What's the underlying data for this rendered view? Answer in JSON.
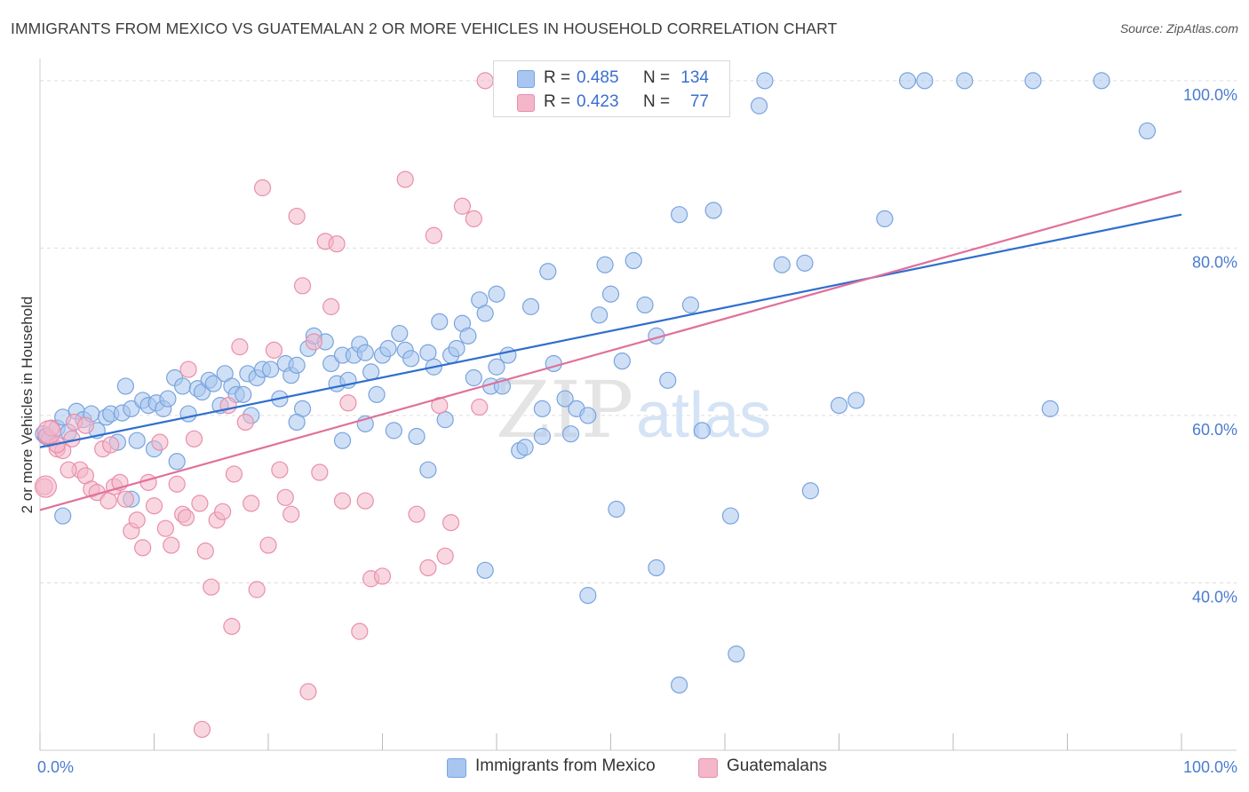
{
  "title": "IMMIGRANTS FROM MEXICO VS GUATEMALAN 2 OR MORE VEHICLES IN HOUSEHOLD CORRELATION CHART",
  "source": "Source: ZipAtlas.com",
  "watermark": {
    "zip": "ZIP",
    "atlas": "atlas"
  },
  "legend": {
    "series1": {
      "r_label": "R =",
      "r_value": "0.485",
      "n_label": "N =",
      "n_value": "134"
    },
    "series2": {
      "r_label": "R =",
      "r_value": "0.423",
      "n_label": "N =",
      "n_value": "77"
    }
  },
  "bottom_legend": {
    "series1": "Immigrants from Mexico",
    "series2": "Guatemalans"
  },
  "colors": {
    "blue_fill": "#a8c6ef",
    "blue_stroke": "#7aa3de",
    "blue_line": "#2f6ecf",
    "pink_fill": "#f4b6c9",
    "pink_stroke": "#e88fac",
    "pink_line": "#e0709a",
    "tick_text": "#4a7bd0",
    "grid": "#dddddd"
  },
  "chart_data": {
    "type": "scatter",
    "title": "IMMIGRANTS FROM MEXICO VS GUATEMALAN 2 OR MORE VEHICLES IN HOUSEHOLD CORRELATION CHART",
    "xlabel": "",
    "ylabel": "2 or more Vehicles in Household",
    "xlim": [
      0,
      100
    ],
    "ylim": [
      20,
      102
    ],
    "x_tick_labels": [
      "0.0%",
      "100.0%"
    ],
    "y_ticks": [
      40,
      60,
      80,
      100
    ],
    "y_tick_labels": [
      "40.0%",
      "60.0%",
      "80.0%",
      "100.0%"
    ],
    "grid": true,
    "legend_position": "top-center",
    "series": [
      {
        "name": "Immigrants from Mexico",
        "color": "#a8c6ef",
        "trend": [
          [
            0,
            56.2
          ],
          [
            100,
            84.0
          ]
        ],
        "points": [
          [
            0.3,
            57.8
          ],
          [
            0.5,
            57.5
          ],
          [
            0.8,
            57.2
          ],
          [
            1.5,
            58.5
          ],
          [
            2.0,
            59.8
          ],
          [
            2.5,
            58.0
          ],
          [
            3.2,
            60.5
          ],
          [
            3.8,
            59.5
          ],
          [
            4.5,
            60.2
          ],
          [
            5.0,
            58.2
          ],
          [
            5.8,
            59.8
          ],
          [
            6.2,
            60.2
          ],
          [
            6.8,
            56.8
          ],
          [
            7.2,
            60.3
          ],
          [
            7.5,
            63.5
          ],
          [
            8.0,
            60.8
          ],
          [
            8.5,
            57.0
          ],
          [
            9.0,
            61.8
          ],
          [
            9.5,
            61.2
          ],
          [
            10.2,
            61.5
          ],
          [
            10.8,
            60.8
          ],
          [
            11.2,
            62.0
          ],
          [
            11.8,
            64.5
          ],
          [
            12.5,
            63.5
          ],
          [
            13.0,
            60.2
          ],
          [
            13.8,
            63.2
          ],
          [
            14.2,
            62.8
          ],
          [
            14.8,
            64.2
          ],
          [
            15.2,
            63.8
          ],
          [
            15.8,
            61.2
          ],
          [
            16.2,
            65.0
          ],
          [
            16.8,
            63.5
          ],
          [
            17.2,
            62.5
          ],
          [
            17.8,
            62.5
          ],
          [
            18.2,
            65.0
          ],
          [
            19.0,
            64.5
          ],
          [
            19.5,
            65.5
          ],
          [
            20.2,
            65.5
          ],
          [
            21.0,
            62.0
          ],
          [
            21.5,
            66.2
          ],
          [
            22.0,
            64.8
          ],
          [
            22.5,
            66.0
          ],
          [
            23.0,
            60.8
          ],
          [
            23.5,
            68.0
          ],
          [
            24.0,
            69.5
          ],
          [
            25.0,
            68.8
          ],
          [
            25.5,
            66.2
          ],
          [
            26.0,
            63.8
          ],
          [
            26.5,
            67.2
          ],
          [
            27.0,
            64.2
          ],
          [
            27.5,
            67.2
          ],
          [
            28.0,
            68.5
          ],
          [
            28.5,
            67.5
          ],
          [
            29.0,
            65.2
          ],
          [
            29.5,
            62.5
          ],
          [
            30.0,
            67.2
          ],
          [
            30.5,
            68.0
          ],
          [
            31.0,
            58.2
          ],
          [
            31.5,
            69.8
          ],
          [
            32.0,
            67.8
          ],
          [
            32.5,
            66.8
          ],
          [
            33.0,
            57.5
          ],
          [
            34.0,
            67.5
          ],
          [
            34.5,
            65.8
          ],
          [
            35.0,
            71.2
          ],
          [
            35.5,
            59.5
          ],
          [
            36.0,
            67.2
          ],
          [
            36.5,
            68.0
          ],
          [
            37.0,
            71.0
          ],
          [
            37.5,
            69.5
          ],
          [
            38.0,
            64.5
          ],
          [
            38.5,
            73.8
          ],
          [
            39.0,
            72.2
          ],
          [
            39.5,
            63.5
          ],
          [
            40.0,
            65.8
          ],
          [
            40.5,
            63.5
          ],
          [
            41.0,
            67.2
          ],
          [
            42.0,
            55.8
          ],
          [
            42.5,
            56.2
          ],
          [
            43.0,
            73.0
          ],
          [
            44.0,
            60.8
          ],
          [
            44.5,
            77.2
          ],
          [
            45.0,
            66.2
          ],
          [
            46.0,
            62.0
          ],
          [
            46.5,
            57.8
          ],
          [
            47.0,
            60.8
          ],
          [
            48.0,
            60.0
          ],
          [
            49.0,
            72.0
          ],
          [
            49.5,
            78.0
          ],
          [
            50.0,
            74.5
          ],
          [
            51.0,
            66.5
          ],
          [
            52.0,
            78.5
          ],
          [
            53.0,
            73.2
          ],
          [
            54.0,
            69.5
          ],
          [
            55.0,
            64.2
          ],
          [
            56.0,
            84.0
          ],
          [
            57.0,
            73.2
          ],
          [
            58.0,
            58.2
          ],
          [
            59.0,
            84.5
          ],
          [
            60.5,
            48.0
          ],
          [
            61.0,
            31.5
          ],
          [
            63.0,
            97.0
          ],
          [
            65.0,
            78.0
          ],
          [
            67.0,
            78.2
          ],
          [
            67.5,
            51.0
          ],
          [
            70.0,
            61.2
          ],
          [
            71.5,
            61.8
          ],
          [
            74.0,
            83.5
          ],
          [
            76.0,
            100.0
          ],
          [
            77.5,
            100.0
          ],
          [
            81.0,
            100.0
          ],
          [
            87.0,
            100.0
          ],
          [
            93.0,
            100.0
          ],
          [
            97.0,
            94.0
          ],
          [
            63.5,
            100.0
          ],
          [
            58.0,
            100.0
          ],
          [
            55.0,
            100.0
          ],
          [
            88.5,
            60.8
          ],
          [
            48.0,
            38.5
          ],
          [
            56.0,
            27.8
          ],
          [
            54.0,
            41.8
          ],
          [
            50.5,
            48.8
          ],
          [
            39.0,
            41.5
          ],
          [
            22.5,
            59.2
          ],
          [
            28.5,
            59.0
          ],
          [
            34.0,
            53.5
          ],
          [
            12.0,
            54.5
          ],
          [
            2.0,
            48.0
          ],
          [
            8.0,
            50.0
          ],
          [
            10.0,
            56.0
          ],
          [
            18.5,
            60.0
          ],
          [
            40.0,
            74.5
          ],
          [
            44.0,
            57.5
          ],
          [
            26.5,
            57.0
          ]
        ]
      },
      {
        "name": "Guatemalans",
        "color": "#f4b6c9",
        "trend": [
          [
            0,
            48.7
          ],
          [
            100,
            86.8
          ]
        ],
        "points": [
          [
            0.4,
            51.5
          ],
          [
            0.6,
            57.5
          ],
          [
            1.0,
            58.5
          ],
          [
            1.5,
            56.0
          ],
          [
            2.0,
            55.8
          ],
          [
            2.8,
            57.2
          ],
          [
            3.0,
            59.2
          ],
          [
            3.5,
            53.5
          ],
          [
            4.0,
            52.8
          ],
          [
            4.5,
            51.2
          ],
          [
            5.0,
            50.8
          ],
          [
            5.5,
            56.0
          ],
          [
            6.0,
            49.8
          ],
          [
            6.5,
            51.5
          ],
          [
            7.0,
            52.0
          ],
          [
            7.5,
            50.0
          ],
          [
            8.0,
            46.2
          ],
          [
            8.5,
            47.5
          ],
          [
            9.0,
            44.2
          ],
          [
            9.5,
            52.0
          ],
          [
            10.0,
            49.2
          ],
          [
            10.5,
            56.8
          ],
          [
            11.0,
            46.5
          ],
          [
            11.5,
            44.5
          ],
          [
            12.0,
            51.8
          ],
          [
            12.5,
            48.2
          ],
          [
            13.0,
            65.5
          ],
          [
            13.5,
            57.2
          ],
          [
            14.0,
            49.5
          ],
          [
            14.5,
            43.8
          ],
          [
            15.0,
            39.5
          ],
          [
            15.5,
            47.5
          ],
          [
            16.0,
            48.5
          ],
          [
            16.5,
            61.2
          ],
          [
            17.0,
            53.0
          ],
          [
            17.5,
            68.2
          ],
          [
            18.0,
            59.2
          ],
          [
            18.5,
            49.5
          ],
          [
            19.0,
            39.2
          ],
          [
            19.5,
            87.2
          ],
          [
            20.0,
            44.5
          ],
          [
            20.5,
            67.8
          ],
          [
            21.0,
            53.5
          ],
          [
            21.5,
            50.2
          ],
          [
            22.0,
            48.2
          ],
          [
            22.5,
            83.8
          ],
          [
            23.0,
            75.5
          ],
          [
            23.5,
            27.0
          ],
          [
            24.0,
            68.8
          ],
          [
            24.5,
            53.2
          ],
          [
            25.0,
            80.8
          ],
          [
            25.5,
            73.0
          ],
          [
            26.0,
            80.5
          ],
          [
            26.5,
            49.8
          ],
          [
            27.0,
            61.5
          ],
          [
            28.0,
            34.2
          ],
          [
            28.5,
            49.8
          ],
          [
            29.0,
            40.5
          ],
          [
            30.0,
            40.8
          ],
          [
            32.0,
            88.2
          ],
          [
            33.0,
            48.2
          ],
          [
            34.0,
            41.8
          ],
          [
            34.5,
            81.5
          ],
          [
            35.0,
            61.2
          ],
          [
            35.5,
            43.2
          ],
          [
            36.0,
            47.2
          ],
          [
            37.0,
            85.0
          ],
          [
            38.0,
            83.5
          ],
          [
            38.5,
            61.0
          ],
          [
            39.0,
            100.0
          ],
          [
            1.5,
            56.5
          ],
          [
            4.0,
            58.8
          ],
          [
            6.2,
            56.5
          ],
          [
            12.8,
            47.8
          ],
          [
            16.8,
            34.8
          ],
          [
            14.2,
            22.5
          ],
          [
            2.5,
            53.5
          ]
        ]
      }
    ]
  }
}
